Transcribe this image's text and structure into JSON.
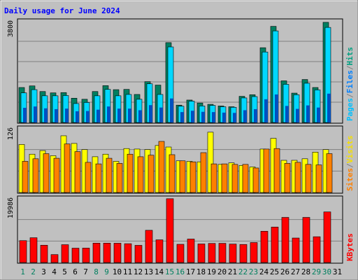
{
  "chart_data": {
    "type": "bar",
    "title": "Daily usage for June 2024",
    "categories": [
      "1",
      "2",
      "3",
      "4",
      "5",
      "6",
      "7",
      "8",
      "9",
      "10",
      "11",
      "12",
      "13",
      "14",
      "15",
      "16",
      "17",
      "18",
      "19",
      "20",
      "21",
      "22",
      "23",
      "24",
      "25",
      "26",
      "27",
      "28",
      "29",
      "30",
      "31"
    ],
    "weekend_days": [
      1,
      2,
      8,
      9,
      15,
      16,
      22,
      23,
      29,
      30
    ],
    "panels": [
      {
        "id": "hits",
        "ymax_label": "3800",
        "ymax": 3800,
        "legend": [
          {
            "text": "Pages",
            "color": "#00c0ff"
          },
          {
            "text": "/",
            "color": "#808080"
          },
          {
            "text": "Files",
            "color": "#0080ff"
          },
          {
            "text": "/",
            "color": "#808080"
          },
          {
            "text": "Hits",
            "color": "#009f80"
          }
        ],
        "series": [
          {
            "name": "Hits",
            "color": "#007f60",
            "values": [
              1310,
              1370,
              1160,
              1110,
              1120,
              910,
              870,
              1160,
              1380,
              1230,
              1240,
              1050,
              1530,
              1400,
              2990,
              650,
              840,
              730,
              680,
              620,
              590,
              980,
              1040,
              2800,
              3600,
              1560,
              1100,
              1610,
              1310,
              3750
            ]
          },
          {
            "name": "Files",
            "color": "#00d8ff",
            "values": [
              1110,
              1230,
              1000,
              1000,
              1010,
              710,
              750,
              1000,
              1240,
              1000,
              1050,
              870,
              1450,
              1050,
              2830,
              610,
              800,
              620,
              640,
              590,
              570,
              920,
              970,
              2640,
              3430,
              1430,
              1040,
              1470,
              1220,
              3560
            ]
          },
          {
            "name": "Pages",
            "color": "#0050c0",
            "values": [
              550,
              600,
              530,
              500,
              520,
              420,
              430,
              480,
              600,
              520,
              520,
              460,
              650,
              560,
              900,
              390,
              440,
              400,
              390,
              370,
              360,
              460,
              500,
              870,
              1050,
              620,
              510,
              640,
              560,
              1080
            ]
          }
        ]
      },
      {
        "id": "visits",
        "ymax_label": "126",
        "ymax": 126,
        "legend": [
          {
            "text": "Sites",
            "color": "#ff8000"
          },
          {
            "text": "/",
            "color": "#808080"
          },
          {
            "text": "Visits",
            "color": "#f5e000"
          }
        ],
        "series": [
          {
            "name": "Visits",
            "color": "#ffff00",
            "values": [
              94,
              75,
              82,
              72,
              111,
              96,
              84,
              70,
              75,
              61,
              86,
              85,
              84,
              92,
              89,
              62,
              61,
              60,
              118,
              55,
              58,
              53,
              50,
              85,
              106,
              63,
              63,
              66,
              79,
              84
            ]
          },
          {
            "name": "Sites",
            "color": "#ff8000",
            "values": [
              61,
              66,
              76,
              67,
              95,
              80,
              59,
              56,
              67,
              57,
              75,
              70,
              73,
              100,
              74,
              62,
              60,
              78,
              56,
              56,
              55,
              55,
              48,
              85,
              86,
              57,
              59,
              55,
              54,
              76
            ]
          }
        ]
      },
      {
        "id": "kbytes",
        "ymax_label": "19986",
        "ymax": 19986,
        "legend": [
          {
            "text": "KBytes",
            "color": "#ff0000"
          }
        ],
        "series": [
          {
            "name": "KBytes",
            "color": "#ff0000",
            "values": [
              6790,
              7690,
              5370,
              2460,
              5530,
              4450,
              4470,
              6020,
              6020,
              5990,
              5840,
              5330,
              10000,
              7040,
              19800,
              5650,
              7280,
              5760,
              5920,
              5950,
              5720,
              5600,
              6200,
              9700,
              11000,
              14000,
              7600,
              14000,
              8000,
              15700
            ]
          }
        ]
      }
    ]
  }
}
